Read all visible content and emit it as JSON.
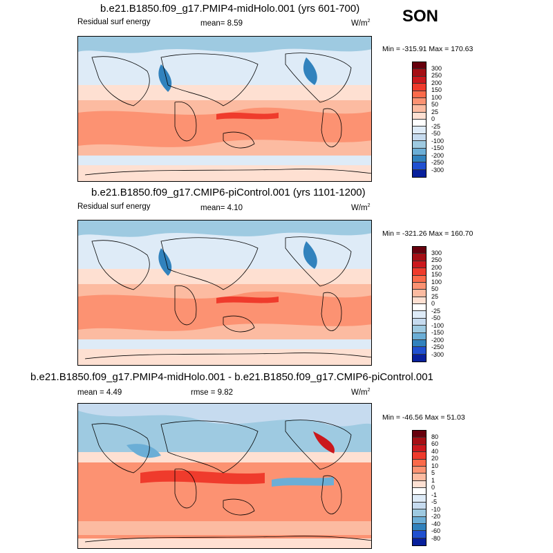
{
  "season": "SON",
  "panels": [
    {
      "title": "b.e21.B1850.f09_g17.PMIP4-midHolo.001 (yrs 601-700)",
      "left_label": "Residual surf energy",
      "center_label": "mean=   8.59",
      "units": "W/m",
      "units_sup": "2",
      "minmax": "Min = -315.91 Max = 170.63",
      "scale": "main"
    },
    {
      "title": "b.e21.B1850.f09_g17.CMIP6-piControl.001 (yrs 1101-1200)",
      "left_label": "Residual surf energy",
      "center_label": "mean=   4.10",
      "units": "W/m",
      "units_sup": "2",
      "minmax": "Min = -321.26 Max = 160.70",
      "scale": "main"
    },
    {
      "title": "b.e21.B1850.f09_g17.PMIP4-midHolo.001 - b.e21.B1850.f09_g17.CMIP6-piControl.001",
      "left_label": "mean =   4.49",
      "center_label": "rmse =   9.82",
      "units": "W/m",
      "units_sup": "2",
      "minmax": "Min = -46.56 Max =  51.03",
      "scale": "diff"
    }
  ],
  "colorbars": {
    "main": {
      "labels": [
        "300",
        "250",
        "200",
        "150",
        "100",
        "50",
        "25",
        "0",
        "-25",
        "-50",
        "-100",
        "-150",
        "-200",
        "-250",
        "-300"
      ],
      "colors": [
        "#67000d",
        "#a50f15",
        "#cb181d",
        "#ef3b2c",
        "#fb6a4a",
        "#fc9272",
        "#fcbba1",
        "#fee0d2",
        "#ffffff",
        "#deebf7",
        "#c6dbef",
        "#9ecae1",
        "#6baed6",
        "#3182bd",
        "#2050d0",
        "#08209c"
      ]
    },
    "diff": {
      "labels": [
        "80",
        "60",
        "40",
        "20",
        "10",
        "5",
        "1",
        "0",
        "-1",
        "-5",
        "-10",
        "-20",
        "-40",
        "-60",
        "-80"
      ],
      "colors": [
        "#67000d",
        "#a50f15",
        "#cb181d",
        "#ef3b2c",
        "#fb6a4a",
        "#fc9272",
        "#fcbba1",
        "#fee0d2",
        "#ffffff",
        "#deebf7",
        "#c6dbef",
        "#9ecae1",
        "#6baed6",
        "#3182bd",
        "#2050d0",
        "#08209c"
      ]
    }
  },
  "chart_data": [
    {
      "type": "heatmap",
      "title": "b.e21.B1850.f09_g17.PMIP4-midHolo.001 (yrs 601-700)",
      "variable": "Residual surf energy",
      "units": "W/m2",
      "season": "SON",
      "mean": 8.59,
      "min": -315.91,
      "max": 170.63,
      "contour_levels": [
        -300,
        -250,
        -200,
        -150,
        -100,
        -50,
        -25,
        0,
        25,
        50,
        100,
        150,
        200,
        250,
        300
      ]
    },
    {
      "type": "heatmap",
      "title": "b.e21.B1850.f09_g17.CMIP6-piControl.001 (yrs 1101-1200)",
      "variable": "Residual surf energy",
      "units": "W/m2",
      "season": "SON",
      "mean": 4.1,
      "min": -321.26,
      "max": 160.7,
      "contour_levels": [
        -300,
        -250,
        -200,
        -150,
        -100,
        -50,
        -25,
        0,
        25,
        50,
        100,
        150,
        200,
        250,
        300
      ]
    },
    {
      "type": "heatmap",
      "title": "b.e21.B1850.f09_g17.PMIP4-midHolo.001 - b.e21.B1850.f09_g17.CMIP6-piControl.001",
      "units": "W/m2",
      "season": "SON",
      "mean": 4.49,
      "rmse": 9.82,
      "min": -46.56,
      "max": 51.03,
      "contour_levels": [
        -80,
        -60,
        -40,
        -20,
        -10,
        -5,
        -1,
        0,
        1,
        5,
        10,
        20,
        40,
        60,
        80
      ]
    }
  ]
}
